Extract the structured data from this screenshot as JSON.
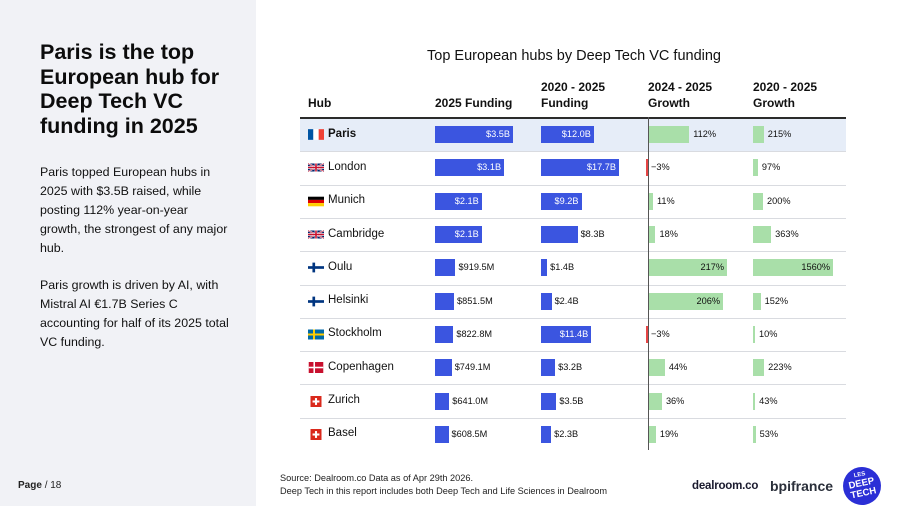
{
  "left_panel": {
    "headline": "Paris is the top European hub for Deep Tech VC funding in 2025",
    "paragraph_1": "Paris topped European hubs in 2025 with $3.5B raised, while posting 112% year-on-year growth, the strongest of any major hub.",
    "paragraph_2": "Paris growth is driven by AI, with Mistral AI €1.7B Series C accounting for half of its 2025 total VC funding."
  },
  "page": {
    "label": "Page",
    "number": "/ 18"
  },
  "chart_data": {
    "type": "table",
    "title": "Top European hubs by Deep Tech VC funding",
    "columns": [
      {
        "key": "hub",
        "label": "Hub"
      },
      {
        "key": "funding_2025",
        "label": "2025 Funding"
      },
      {
        "key": "funding_2020_2025",
        "label": "2020 - 2025 Funding"
      },
      {
        "key": "growth_2024_2025",
        "label": "2024 - 2025 Growth"
      },
      {
        "key": "growth_2020_2025",
        "label": "2020 - 2025 Growth"
      }
    ],
    "highlighted_row": "Paris",
    "rows": [
      {
        "hub": "Paris",
        "flag": "france-flag-icon",
        "funding_2025": 3.5,
        "funding_2025_label": "$3.5B",
        "funding_2020_2025": 12.0,
        "funding_2020_2025_label": "$12.0B",
        "growth_2024_2025": 112,
        "growth_2024_2025_label": "112%",
        "growth_2020_2025": 215,
        "growth_2020_2025_label": "215%"
      },
      {
        "hub": "London",
        "flag": "uk-flag-icon",
        "funding_2025": 3.1,
        "funding_2025_label": "$3.1B",
        "funding_2020_2025": 17.7,
        "funding_2020_2025_label": "$17.7B",
        "growth_2024_2025": -3,
        "growth_2024_2025_label": "−3%",
        "growth_2020_2025": 97,
        "growth_2020_2025_label": "97%"
      },
      {
        "hub": "Munich",
        "flag": "germany-flag-icon",
        "funding_2025": 2.1,
        "funding_2025_label": "$2.1B",
        "funding_2020_2025": 9.2,
        "funding_2020_2025_label": "$9.2B",
        "growth_2024_2025": 11,
        "growth_2024_2025_label": "11%",
        "growth_2020_2025": 200,
        "growth_2020_2025_label": "200%"
      },
      {
        "hub": "Cambridge",
        "flag": "uk-flag-icon",
        "funding_2025": 2.1,
        "funding_2025_label": "$2.1B",
        "funding_2020_2025": 8.3,
        "funding_2020_2025_label": "$8.3B",
        "growth_2024_2025": 18,
        "growth_2024_2025_label": "18%",
        "growth_2020_2025": 363,
        "growth_2020_2025_label": "363%"
      },
      {
        "hub": "Oulu",
        "flag": "finland-flag-icon",
        "funding_2025": 0.9195,
        "funding_2025_label": "$919.5M",
        "funding_2020_2025": 1.4,
        "funding_2020_2025_label": "$1.4B",
        "growth_2024_2025": 217,
        "growth_2024_2025_label": "217%",
        "growth_2020_2025": 1560,
        "growth_2020_2025_label": "1560%"
      },
      {
        "hub": "Helsinki",
        "flag": "finland-flag-icon",
        "funding_2025": 0.8515,
        "funding_2025_label": "$851.5M",
        "funding_2020_2025": 2.4,
        "funding_2020_2025_label": "$2.4B",
        "growth_2024_2025": 206,
        "growth_2024_2025_label": "206%",
        "growth_2020_2025": 152,
        "growth_2020_2025_label": "152%"
      },
      {
        "hub": "Stockholm",
        "flag": "sweden-flag-icon",
        "funding_2025": 0.8228,
        "funding_2025_label": "$822.8M",
        "funding_2020_2025": 11.4,
        "funding_2020_2025_label": "$11.4B",
        "growth_2024_2025": -3,
        "growth_2024_2025_label": "−3%",
        "growth_2020_2025": 10,
        "growth_2020_2025_label": "10%"
      },
      {
        "hub": "Copenhagen",
        "flag": "denmark-flag-icon",
        "funding_2025": 0.7491,
        "funding_2025_label": "$749.1M",
        "funding_2020_2025": 3.2,
        "funding_2020_2025_label": "$3.2B",
        "growth_2024_2025": 44,
        "growth_2024_2025_label": "44%",
        "growth_2020_2025": 223,
        "growth_2020_2025_label": "223%"
      },
      {
        "hub": "Zurich",
        "flag": "switzerland-flag-icon",
        "funding_2025": 0.641,
        "funding_2025_label": "$641.0M",
        "funding_2020_2025": 3.5,
        "funding_2020_2025_label": "$3.5B",
        "growth_2024_2025": 36,
        "growth_2024_2025_label": "36%",
        "growth_2020_2025": 43,
        "growth_2020_2025_label": "43%"
      },
      {
        "hub": "Basel",
        "flag": "switzerland-flag-icon",
        "funding_2025": 0.6085,
        "funding_2025_label": "$608.5M",
        "funding_2020_2025": 2.3,
        "funding_2020_2025_label": "$2.3B",
        "growth_2024_2025": 19,
        "growth_2024_2025_label": "19%",
        "growth_2020_2025": 53,
        "growth_2020_2025_label": "53%"
      }
    ],
    "colors": {
      "funding": "#3b55e0",
      "growth_positive": "#a9dfa9",
      "growth_negative": "#e64545",
      "highlight_row": "#e6edf8"
    }
  },
  "footer": {
    "source_line_1": "Source: Dealroom.co Data as of Apr 29th 2026.",
    "source_line_2": "Deep Tech in this report includes both Deep Tech and Life Sciences in Dealroom"
  },
  "logos": {
    "dealroom": "dealroom.co",
    "bpifrance_a": "bpi",
    "bpifrance_b": "france",
    "lesdeeptech_1": "LES",
    "lesdeeptech_2": "DEEP",
    "lesdeeptech_3": "TECH"
  }
}
